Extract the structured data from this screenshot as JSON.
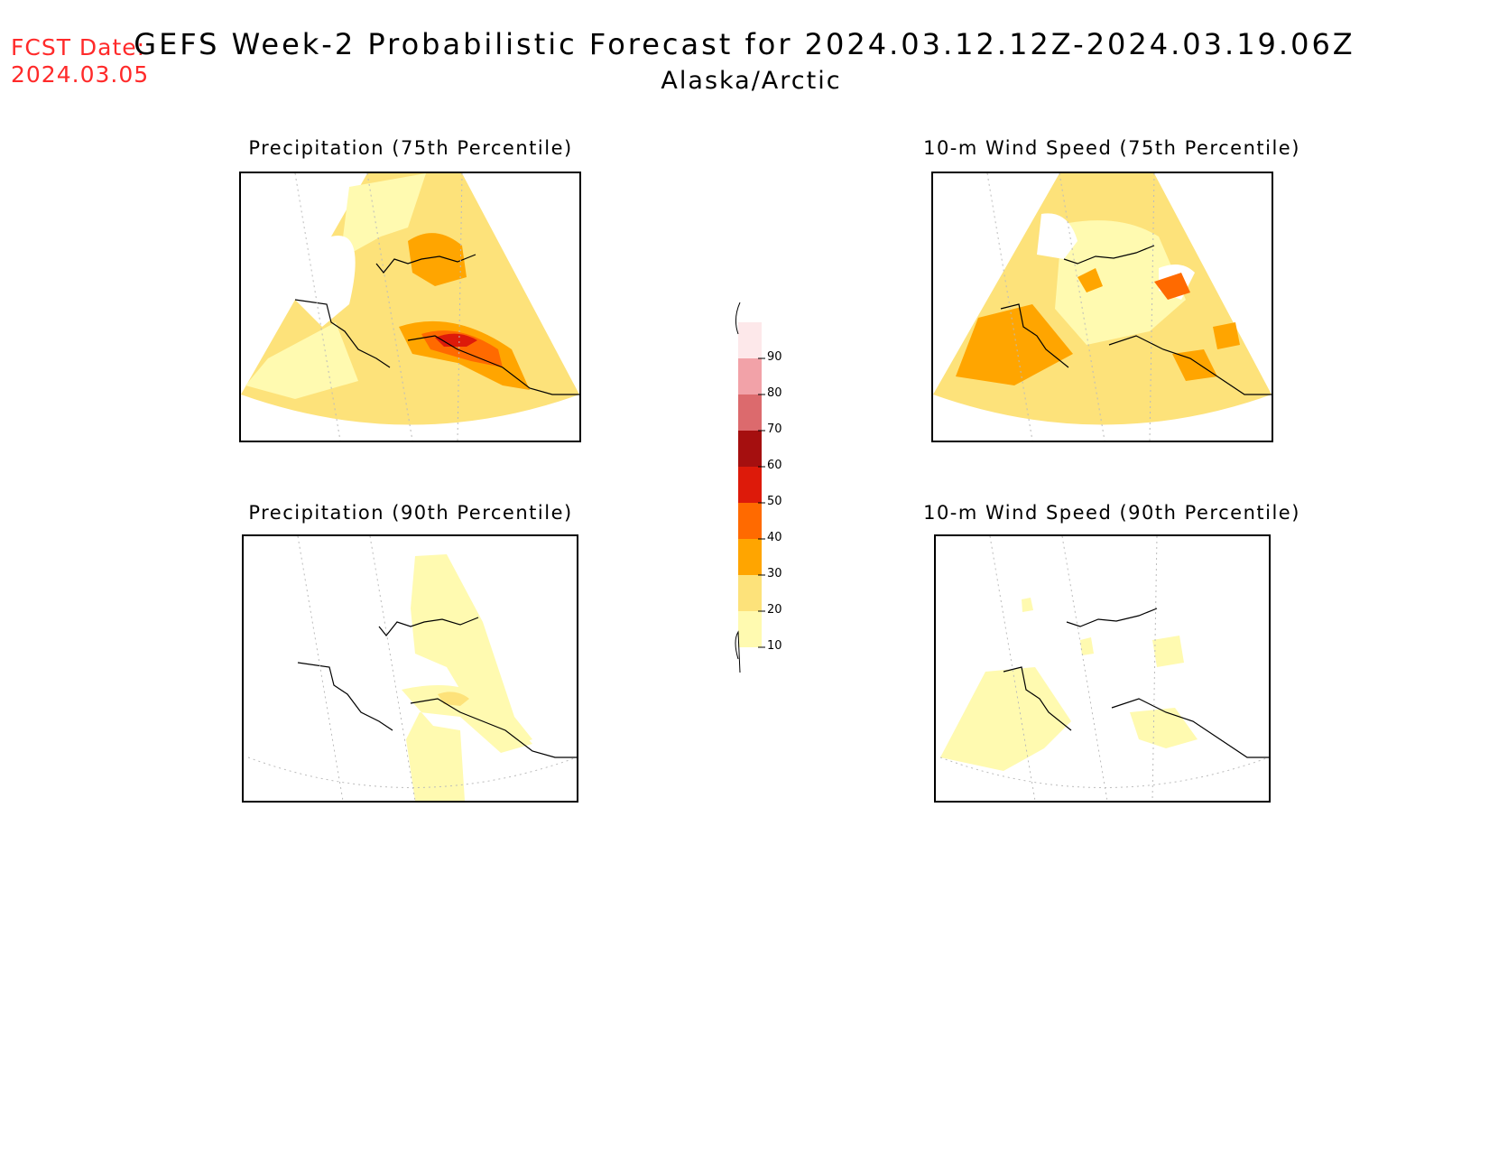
{
  "header": {
    "fcst_label": "FCST Date:",
    "fcst_date": "2024.03.05",
    "title": "GEFS Week-2 Probabilistic Forecast for 2024.03.12.12Z-2024.03.19.06Z",
    "subtitle": "Alaska/Arctic"
  },
  "panels": [
    {
      "id": "precip-75",
      "title": "Precipitation (75th Percentile)"
    },
    {
      "id": "wind-75",
      "title": "10-m Wind Speed (75th Percentile)"
    },
    {
      "id": "precip-90",
      "title": "Precipitation (90th Percentile)"
    },
    {
      "id": "wind-90",
      "title": "10-m Wind Speed (90th Percentile)"
    }
  ],
  "colorbar": {
    "ticks": [
      "90",
      "80",
      "70",
      "60",
      "50",
      "40",
      "30",
      "20",
      "10"
    ],
    "colors": [
      "#fde8ea",
      "#f2a2a8",
      "#dc6a6d",
      "#a50f0f",
      "#dd1a0a",
      "#ff6a00",
      "#ffa500",
      "#fde27a",
      "#fffab0"
    ]
  },
  "colors": {
    "level_10": "#fffab0",
    "level_20": "#fde27a",
    "level_30": "#ffa500",
    "level_40": "#ff6a00",
    "level_50": "#dd1a0a",
    "fcst_text": "#ff2a2a"
  }
}
